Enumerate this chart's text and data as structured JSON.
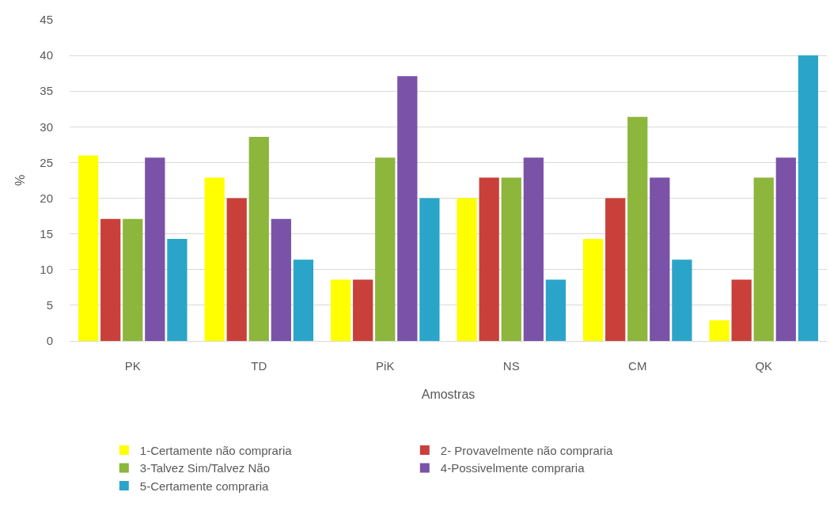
{
  "chart_data": {
    "type": "bar",
    "xlabel": "Amostras",
    "ylabel": "%",
    "categories": [
      "PK",
      "TD",
      "PiK",
      "NS",
      "CM",
      "QK"
    ],
    "series": [
      {
        "name": "1-Certamente não compraria",
        "color": "#ffff00",
        "values": [
          26,
          22.9,
          8.6,
          20,
          14.3,
          2.9
        ]
      },
      {
        "name": "2- Provavelmente não compraria",
        "color": "#c9403a",
        "values": [
          17.1,
          20,
          8.6,
          22.9,
          20,
          8.6
        ]
      },
      {
        "name": "3-Talvez Sim/Talvez Não",
        "color": "#8db63c",
        "values": [
          17.1,
          28.6,
          25.7,
          22.9,
          31.4,
          22.9
        ]
      },
      {
        "name": "4-Possivelmente compraria",
        "color": "#7a52a8",
        "values": [
          25.7,
          17.1,
          37.1,
          25.7,
          22.9,
          25.7
        ]
      },
      {
        "name": "5-Certamente compraria",
        "color": "#2aa5c9",
        "values": [
          14.3,
          11.4,
          20,
          8.6,
          11.4,
          40
        ]
      }
    ],
    "ylim": [
      0,
      45
    ],
    "yticks": [
      0,
      5,
      10,
      15,
      20,
      25,
      30,
      35,
      40,
      45
    ],
    "grid": "y",
    "legend": "bottom"
  }
}
